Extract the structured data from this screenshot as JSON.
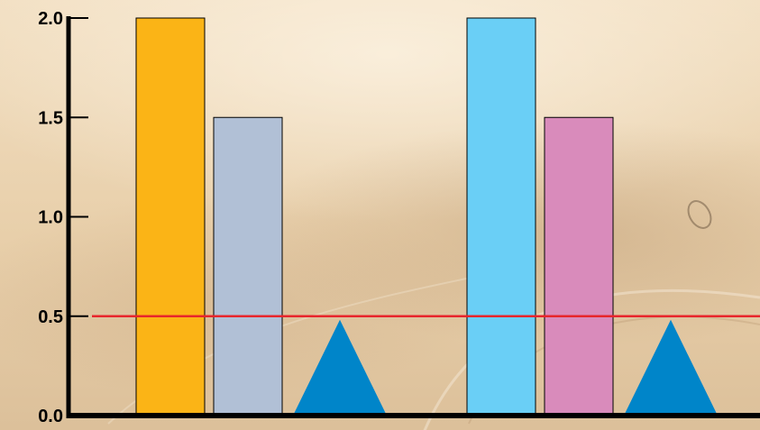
{
  "chart_data": {
    "type": "bar",
    "title": "",
    "xlabel": "",
    "ylabel": "",
    "ylim": [
      0,
      2.0
    ],
    "y_ticks": [
      "2.0",
      "1.5",
      "1.0",
      "0.5",
      "0.0"
    ],
    "grid": false,
    "groups": [
      {
        "bars": [
          {
            "value": 2.0,
            "color": "#fbb416"
          },
          {
            "value": 1.5,
            "color": "#b1c0d6"
          }
        ],
        "marker": {
          "value": 0.5,
          "shape": "triangle",
          "color": "#0085c9"
        }
      },
      {
        "bars": [
          {
            "value": 2.0,
            "color": "#6acff6"
          },
          {
            "value": 1.5,
            "color": "#d98bbb"
          }
        ],
        "marker": {
          "value": 0.5,
          "shape": "triangle",
          "color": "#0085c9"
        }
      }
    ],
    "reference_line": {
      "value": 0.5,
      "color": "#e8262c"
    },
    "axis_color": "#000000"
  }
}
